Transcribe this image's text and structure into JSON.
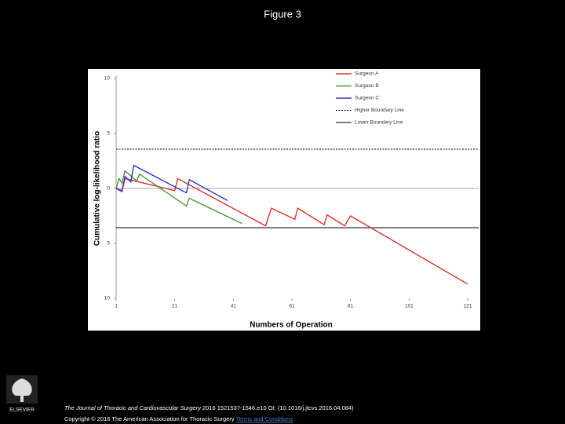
{
  "page": {
    "title": "Figure 3",
    "citation": {
      "journal": "The Journal of Thoracic and Cardiovascular Surgery",
      "details": "2016 1521537-1546.e10 OI: (10.1016/j.jtcvs.2016.04.084)"
    },
    "copyright": "Copyright © 2016 The American Association for Thoracic Surgery",
    "link": "Terms and Conditions",
    "logo": "ELSEVIER"
  },
  "chart_data": {
    "type": "line",
    "x_label": "Numbers of Operation",
    "y_label": "Cumulative log-likelihood ratio",
    "xlim": [
      1,
      121
    ],
    "xticks": [
      1,
      21,
      41,
      61,
      81,
      101,
      121
    ],
    "ylim": [
      -10,
      10
    ],
    "yticks": [
      {
        "value": -10,
        "label": "10"
      },
      {
        "value": -5,
        "label": "5"
      },
      0,
      5,
      10
    ],
    "series": [
      {
        "name": "Surgeon A",
        "color": "#e0302a",
        "x": [
          1,
          3,
          4,
          21,
          22,
          52,
          54,
          62,
          63,
          72,
          73,
          79,
          81,
          121
        ],
        "values": [
          0,
          -0.3,
          0.9,
          -0.2,
          0.9,
          -3.4,
          -1.8,
          -2.8,
          -1.8,
          -3.3,
          -2.4,
          -3.4,
          -2.5,
          -8.7
        ]
      },
      {
        "name": "Surgeon B",
        "color": "#4a9a3a",
        "x": [
          1,
          2,
          3,
          4,
          8,
          9,
          25,
          26,
          44
        ],
        "values": [
          0,
          0.9,
          0.5,
          1.6,
          0.7,
          1.3,
          -1.6,
          -0.9,
          -3.2
        ]
      },
      {
        "name": "Surgeon C",
        "color": "#3434c8",
        "x": [
          1,
          3,
          4,
          6,
          7,
          25,
          26,
          39
        ],
        "values": [
          0,
          -0.2,
          1.1,
          0.6,
          2.1,
          -0.4,
          0.8,
          -1.1
        ]
      }
    ],
    "reference_lines": [
      {
        "name": "Higher Boundary Line",
        "value": 3.57,
        "color": "#000000",
        "dashed": true
      },
      {
        "name": "Lower Boundary Line",
        "value": -3.57,
        "color": "#000000",
        "dashed": false
      }
    ]
  }
}
